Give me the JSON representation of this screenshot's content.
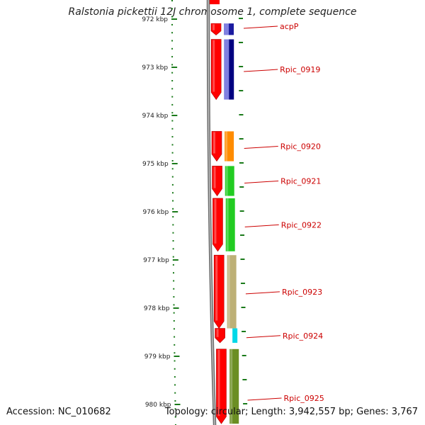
{
  "title": "Ralstonia pickettii 12J chromosome 1, complete sequence",
  "accession_text": "Accession: NC_010682",
  "topology_text": "Topology: circular; Length: 3,942,557 bp; Genes: 3,767",
  "ruler": {
    "unit": "kbp",
    "ticks": [
      {
        "kbp": 972,
        "label": "972 kbp"
      },
      {
        "kbp": 973,
        "label": "973 kbp"
      },
      {
        "kbp": 974,
        "label": "974 kbp"
      },
      {
        "kbp": 975,
        "label": "975 kbp"
      },
      {
        "kbp": 976,
        "label": "976 kbp"
      },
      {
        "kbp": 977,
        "label": "977 kbp"
      },
      {
        "kbp": 978,
        "label": "978 kbp"
      },
      {
        "kbp": 979,
        "label": "979 kbp"
      },
      {
        "kbp": 980,
        "label": "980 kbp"
      }
    ]
  },
  "genes": [
    {
      "label": "acpP",
      "start_kbp": 972.09,
      "end_kbp": 972.33,
      "strand": "reverse",
      "cog_color": "#1a1aa0"
    },
    {
      "label": "Rpic_0919",
      "start_kbp": 972.42,
      "end_kbp": 973.67,
      "strand": "reverse",
      "cog_color": "#000080"
    },
    {
      "label": "Rpic_0920",
      "start_kbp": 974.33,
      "end_kbp": 974.95,
      "strand": "reverse",
      "cog_color": "#ff8c00"
    },
    {
      "label": "Rpic_0921",
      "start_kbp": 975.05,
      "end_kbp": 975.67,
      "strand": "reverse",
      "cog_color": "#22cc22"
    },
    {
      "label": "Rpic_0922",
      "start_kbp": 975.72,
      "end_kbp": 976.82,
      "strand": "reverse",
      "cog_color": "#22cc22"
    },
    {
      "label": "Rpic_0923",
      "start_kbp": 976.9,
      "end_kbp": 978.42,
      "strand": "reverse",
      "cog_color": "#bdb076"
    },
    {
      "label": "Rpic_0924",
      "start_kbp": 978.42,
      "end_kbp": 978.72,
      "strand": "reverse",
      "cog_color": "#00d8e8"
    },
    {
      "label": "Rpic_0925",
      "start_kbp": 978.85,
      "end_kbp": 980.4,
      "strand": "reverse",
      "cog_color": "#6b8e23"
    }
  ],
  "colors": {
    "cds": "#ff0000",
    "ruler": "#1a7a1a",
    "backbone": "#888888",
    "label": "#cc0000"
  }
}
